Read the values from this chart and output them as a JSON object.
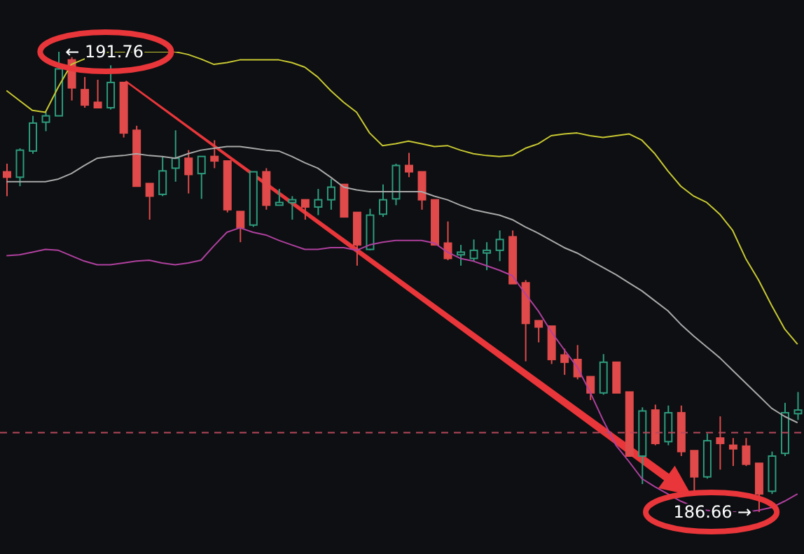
{
  "chart_data": {
    "type": "candlestick",
    "categories": [
      null,
      null,
      null,
      null,
      null,
      null,
      null,
      null,
      null,
      null,
      null,
      null,
      null,
      null,
      null,
      null,
      null,
      null,
      null,
      null,
      null,
      null,
      null,
      null,
      null,
      null,
      null,
      null,
      null,
      null,
      null,
      null,
      null,
      null,
      null,
      null,
      null,
      null,
      null,
      null,
      null,
      null,
      null,
      null,
      null,
      null,
      null,
      null,
      null,
      null,
      null,
      null,
      null,
      null,
      null,
      null,
      null,
      null,
      null,
      null,
      null,
      null
    ],
    "ohlc": [
      [
        190.43,
        190.52,
        190.16,
        190.37
      ],
      [
        190.37,
        190.69,
        190.27,
        190.67
      ],
      [
        190.66,
        191.05,
        190.63,
        190.97
      ],
      [
        190.98,
        191.09,
        190.88,
        191.05
      ],
      [
        191.05,
        191.76,
        191.05,
        191.57
      ],
      [
        191.67,
        191.7,
        191.22,
        191.36
      ],
      [
        191.34,
        191.48,
        191.14,
        191.17
      ],
      [
        191.2,
        191.45,
        191.14,
        191.14
      ],
      [
        191.14,
        191.61,
        191.12,
        191.42
      ],
      [
        191.42,
        191.42,
        190.81,
        190.86
      ],
      [
        190.89,
        190.94,
        190.27,
        190.27
      ],
      [
        190.3,
        190.3,
        189.9,
        190.16
      ],
      [
        190.18,
        190.6,
        190.16,
        190.44
      ],
      [
        190.47,
        190.89,
        190.32,
        190.58
      ],
      [
        190.58,
        190.67,
        190.19,
        190.4
      ],
      [
        190.41,
        190.6,
        190.13,
        190.6
      ],
      [
        190.6,
        190.78,
        190.47,
        190.55
      ],
      [
        190.55,
        190.55,
        189.98,
        190.01
      ],
      [
        189.99,
        189.99,
        189.65,
        189.81
      ],
      [
        189.84,
        190.43,
        189.82,
        190.43
      ],
      [
        190.43,
        190.47,
        190.01,
        190.06
      ],
      [
        190.06,
        190.24,
        190.06,
        190.09
      ],
      [
        190.09,
        190.16,
        189.9,
        190.12
      ],
      [
        190.12,
        190.12,
        189.9,
        190.04
      ],
      [
        190.04,
        190.24,
        189.95,
        190.12
      ],
      [
        190.12,
        190.35,
        190.01,
        190.26
      ],
      [
        190.29,
        190.29,
        189.93,
        189.93
      ],
      [
        189.98,
        189.98,
        189.39,
        189.62
      ],
      [
        189.57,
        190.02,
        189.56,
        189.95
      ],
      [
        189.96,
        190.29,
        189.93,
        190.12
      ],
      [
        190.13,
        190.52,
        190.06,
        190.5
      ],
      [
        190.5,
        190.64,
        190.37,
        190.43
      ],
      [
        190.43,
        190.43,
        190.01,
        190.12
      ],
      [
        190.12,
        190.12,
        189.62,
        189.62
      ],
      [
        189.64,
        189.88,
        189.45,
        189.47
      ],
      [
        189.51,
        189.62,
        189.39,
        189.54
      ],
      [
        189.47,
        189.68,
        189.44,
        189.56
      ],
      [
        189.53,
        189.65,
        189.34,
        189.56
      ],
      [
        189.56,
        189.78,
        189.44,
        189.68
      ],
      [
        189.71,
        189.78,
        189.19,
        189.19
      ],
      [
        189.2,
        189.23,
        188.33,
        188.75
      ],
      [
        188.78,
        188.78,
        188.54,
        188.71
      ],
      [
        188.72,
        188.72,
        188.3,
        188.35
      ],
      [
        188.4,
        188.47,
        188.18,
        188.32
      ],
      [
        188.35,
        188.51,
        188.13,
        188.16
      ],
      [
        188.16,
        188.16,
        187.9,
        187.98
      ],
      [
        187.98,
        188.41,
        187.96,
        188.32
      ],
      [
        188.32,
        188.32,
        187.98,
        187.98
      ],
      [
        187.99,
        187.99,
        187.28,
        187.28
      ],
      [
        187.28,
        187.82,
        186.97,
        187.78
      ],
      [
        187.79,
        187.85,
        187.4,
        187.42
      ],
      [
        187.44,
        187.84,
        187.4,
        187.76
      ],
      [
        187.76,
        187.84,
        187.28,
        187.33
      ],
      [
        187.34,
        187.34,
        186.86,
        187.05
      ],
      [
        187.05,
        187.53,
        187.03,
        187.45
      ],
      [
        187.48,
        187.72,
        187.13,
        187.42
      ],
      [
        187.4,
        187.48,
        187.17,
        187.36
      ],
      [
        187.39,
        187.48,
        187.17,
        187.19
      ],
      [
        187.2,
        187.2,
        186.66,
        186.86
      ],
      [
        186.89,
        187.33,
        186.86,
        187.28
      ],
      [
        187.31,
        187.87,
        187.28,
        187.76
      ],
      [
        187.75,
        187.99,
        187.68,
        187.79
      ]
    ],
    "colors": [
      "#e04a4a",
      "#2e9c7e",
      "#2e9c7e",
      "#2e9c7e",
      "#2e9c7e",
      "#e04a4a",
      "#e04a4a",
      "#e04a4a",
      "#2e9c7e",
      "#e04a4a",
      "#e04a4a",
      "#e04a4a",
      "#2e9c7e",
      "#2e9c7e",
      "#e04a4a",
      "#2e9c7e",
      "#e04a4a",
      "#e04a4a",
      "#e04a4a",
      "#2e9c7e",
      "#e04a4a",
      "#2e9c7e",
      "#2e9c7e",
      "#e04a4a",
      "#2e9c7e",
      "#2e9c7e",
      "#e04a4a",
      "#e04a4a",
      "#2e9c7e",
      "#2e9c7e",
      "#2e9c7e",
      "#e04a4a",
      "#e04a4a",
      "#e04a4a",
      "#e04a4a",
      "#2e9c7e",
      "#2e9c7e",
      "#2e9c7e",
      "#2e9c7e",
      "#e04a4a",
      "#e04a4a",
      "#e04a4a",
      "#e04a4a",
      "#e04a4a",
      "#e04a4a",
      "#e04a4a",
      "#2e9c7e",
      "#e04a4a",
      "#e04a4a",
      "#2e9c7e",
      "#e04a4a",
      "#2e9c7e",
      "#e04a4a",
      "#e04a4a",
      "#2e9c7e",
      "#e04a4a",
      "#e04a4a",
      "#e04a4a",
      "#e04a4a",
      "#2e9c7e",
      "#2e9c7e",
      "#2e9c7e"
    ],
    "series": [
      {
        "type": "line",
        "color": "#c8c832",
        "values": [
          191.33,
          191.22,
          191.11,
          191.09,
          191.37,
          191.62,
          191.68,
          191.74,
          191.76,
          191.76,
          191.76,
          191.76,
          191.76,
          191.76,
          191.73,
          191.68,
          191.62,
          191.64,
          191.67,
          191.67,
          191.67,
          191.67,
          191.64,
          191.59,
          191.48,
          191.33,
          191.2,
          191.09,
          190.86,
          190.72,
          190.74,
          190.77,
          190.74,
          190.71,
          190.72,
          190.67,
          190.63,
          190.61,
          190.6,
          190.61,
          190.69,
          190.74,
          190.83,
          190.85,
          190.86,
          190.83,
          190.81,
          190.83,
          190.85,
          190.78,
          190.63,
          190.44,
          190.27,
          190.16,
          190.09,
          189.96,
          189.78,
          189.47,
          189.23,
          188.95,
          188.69,
          188.52
        ]
      },
      {
        "type": "line",
        "color": "#a9a9a9",
        "values": [
          190.32,
          190.32,
          190.32,
          190.32,
          190.35,
          190.41,
          190.5,
          190.58,
          190.6,
          190.61,
          190.63,
          190.61,
          190.6,
          190.58,
          190.63,
          190.67,
          190.69,
          190.71,
          190.71,
          190.69,
          190.67,
          190.66,
          190.6,
          190.53,
          190.47,
          190.37,
          190.26,
          190.23,
          190.21,
          190.21,
          190.21,
          190.21,
          190.21,
          190.16,
          190.12,
          190.06,
          190.01,
          189.98,
          189.95,
          189.9,
          189.82,
          189.75,
          189.67,
          189.59,
          189.53,
          189.45,
          189.37,
          189.29,
          189.2,
          189.11,
          189.0,
          188.89,
          188.74,
          188.61,
          188.49,
          188.37,
          188.23,
          188.09,
          187.95,
          187.81,
          187.72,
          187.65
        ]
      },
      {
        "type": "line",
        "color": "#b0409f",
        "values": [
          189.5,
          189.51,
          189.54,
          189.57,
          189.56,
          189.5,
          189.44,
          189.4,
          189.4,
          189.42,
          189.44,
          189.45,
          189.42,
          189.4,
          189.42,
          189.45,
          189.61,
          189.76,
          189.81,
          189.76,
          189.73,
          189.67,
          189.62,
          189.57,
          189.57,
          189.59,
          189.59,
          189.56,
          189.62,
          189.65,
          189.67,
          189.67,
          189.67,
          189.64,
          189.54,
          189.47,
          189.44,
          189.39,
          189.34,
          189.28,
          189.08,
          188.89,
          188.66,
          188.46,
          188.27,
          187.99,
          187.68,
          187.4,
          187.22,
          187.03,
          186.94,
          186.86,
          186.78,
          186.72,
          186.68,
          186.66,
          186.66,
          186.66,
          186.68,
          186.71,
          186.78,
          186.86
        ]
      }
    ],
    "ref_lines": [
      {
        "axis": "y",
        "value": 187.54,
        "color": "#b5485a",
        "line_style": "dashed"
      }
    ],
    "annotations": [
      {
        "text": "← 191.76",
        "y": 191.76
      },
      {
        "text": "186.66 →",
        "y": 186.66
      }
    ]
  }
}
